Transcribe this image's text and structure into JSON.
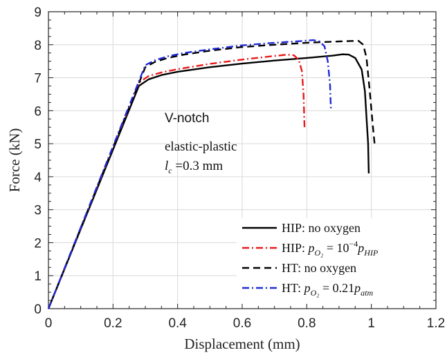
{
  "chart_data": {
    "type": "line",
    "xlabel": "Displacement (mm)",
    "ylabel": "Force (kN)",
    "xlim": [
      0,
      1.2
    ],
    "ylim": [
      0,
      9
    ],
    "xticks": [
      0,
      0.2,
      0.4,
      0.6,
      0.8,
      1,
      1.2
    ],
    "yticks": [
      0,
      1,
      2,
      3,
      4,
      5,
      6,
      7,
      8,
      9
    ],
    "xtick_labels": [
      "0",
      "0.2",
      "0.4",
      "0.6",
      "0.8",
      "1",
      "1.2"
    ],
    "ytick_labels": [
      "0",
      "1",
      "2",
      "3",
      "4",
      "5",
      "6",
      "7",
      "8",
      "9"
    ],
    "grid": true,
    "legend_position": "bottom-right",
    "annotations": {
      "notch": "V-notch",
      "model": "elastic-plastic",
      "lc_symbol": "l",
      "lc_sub": "c",
      "lc_value": " =0.3 mm"
    },
    "series": [
      {
        "name": "HIP: no oxygen",
        "legend": {
          "prefix": "HIP: no oxygen",
          "base": "",
          "sub": "",
          "mid": "",
          "mid_sup": "",
          "tail": "",
          "tail_sub": ""
        },
        "color": "#000000",
        "style": "solid",
        "x": [
          0,
          0.28,
          0.31,
          0.35,
          0.4,
          0.5,
          0.6,
          0.7,
          0.8,
          0.88,
          0.91,
          0.93,
          0.95,
          0.97,
          0.98,
          0.99,
          0.992
        ],
        "y": [
          0,
          6.75,
          6.95,
          7.08,
          7.18,
          7.32,
          7.43,
          7.52,
          7.6,
          7.67,
          7.71,
          7.7,
          7.6,
          7.25,
          6.6,
          5.0,
          4.1
        ]
      },
      {
        "name": "HIP: pO2 = 10^-4 pHIP",
        "legend": {
          "prefix": "HIP: ",
          "base": "p",
          "sub": "O₂",
          "mid": " = 10",
          "mid_sup": "−4",
          "tail": "p",
          "tail_sub": "HIP"
        },
        "color": "#e8191a",
        "style": "dashdot",
        "x": [
          0,
          0.28,
          0.31,
          0.35,
          0.4,
          0.5,
          0.6,
          0.7,
          0.74,
          0.76,
          0.775,
          0.785,
          0.79,
          0.793
        ],
        "y": [
          0,
          6.85,
          7.05,
          7.16,
          7.26,
          7.42,
          7.55,
          7.66,
          7.7,
          7.68,
          7.55,
          7.2,
          6.5,
          5.5
        ]
      },
      {
        "name": "HT: no oxygen",
        "legend": {
          "prefix": "HT: no oxygen",
          "base": "",
          "sub": "",
          "mid": "",
          "mid_sup": "",
          "tail": "",
          "tail_sub": ""
        },
        "color": "#000000",
        "style": "dashed",
        "x": [
          0,
          0.3,
          0.33,
          0.37,
          0.42,
          0.5,
          0.6,
          0.7,
          0.8,
          0.9,
          0.96,
          0.975,
          0.985,
          0.995,
          1.005,
          1.01
        ],
        "y": [
          0,
          7.32,
          7.48,
          7.6,
          7.7,
          7.82,
          7.93,
          8.0,
          8.06,
          8.1,
          8.12,
          8.0,
          7.6,
          6.6,
          5.5,
          5.0
        ]
      },
      {
        "name": "HT: pO2 = 0.21 patm",
        "legend": {
          "prefix": "HT: ",
          "base": "p",
          "sub": "O₂",
          "mid": " = 0.21",
          "mid_sup": "",
          "tail": "p",
          "tail_sub": "atm"
        },
        "color": "#1f2ad6",
        "style": "dashdot",
        "x": [
          0,
          0.3,
          0.33,
          0.37,
          0.42,
          0.5,
          0.6,
          0.7,
          0.78,
          0.82,
          0.84,
          0.855,
          0.865,
          0.872,
          0.875
        ],
        "y": [
          0,
          7.38,
          7.53,
          7.65,
          7.75,
          7.86,
          7.98,
          8.06,
          8.11,
          8.14,
          8.1,
          7.95,
          7.5,
          6.8,
          6.0
        ]
      }
    ]
  }
}
